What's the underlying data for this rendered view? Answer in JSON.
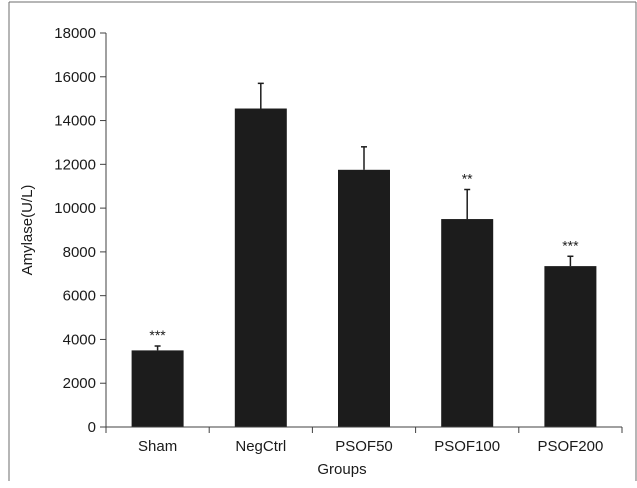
{
  "chart_data": {
    "type": "bar",
    "title": "",
    "xlabel": "Groups",
    "ylabel": "Amylase(U/L)",
    "categories": [
      "Sham",
      "NegCtrl",
      "PSOF50",
      "PSOF100",
      "PSOF200"
    ],
    "values": [
      3500,
      14550,
      11750,
      9500,
      7350
    ],
    "errors": [
      200,
      1150,
      1050,
      1350,
      450
    ],
    "significance": [
      "***",
      "",
      "",
      "**",
      "***"
    ],
    "ylim": [
      0,
      18000
    ],
    "yticks": [
      0,
      2000,
      4000,
      6000,
      8000,
      10000,
      12000,
      14000,
      16000,
      18000
    ],
    "grid": false,
    "legend": "none",
    "colors": {
      "bar": "#1c1c1c",
      "axis": "#404040",
      "frame": "#6e6e6e"
    }
  }
}
